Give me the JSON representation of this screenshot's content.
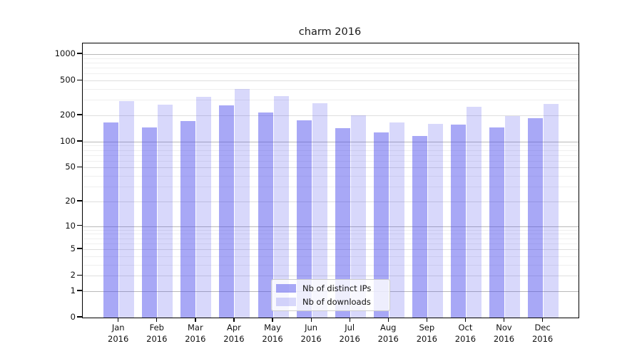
{
  "chart_data": {
    "type": "bar",
    "title": "charm 2016",
    "categories": [
      "Jan",
      "Feb",
      "Mar",
      "Apr",
      "May",
      "Jun",
      "Jul",
      "Aug",
      "Sep",
      "Oct",
      "Nov",
      "Dec"
    ],
    "x_sublabel": "2016",
    "series": [
      {
        "name": "Nb of distinct IPs",
        "color": "rgba(70,70,235,0.47)",
        "values": [
          167,
          145,
          171,
          261,
          217,
          176,
          144,
          128,
          115,
          156,
          146,
          187
        ]
      },
      {
        "name": "Nb of downloads",
        "color": "rgba(70,70,235,0.21)",
        "values": [
          291,
          266,
          327,
          400,
          329,
          275,
          201,
          167,
          160,
          252,
          198,
          268
        ]
      }
    ],
    "yticks": [
      1000,
      500,
      200,
      100,
      50,
      20,
      10,
      5,
      2,
      1,
      0
    ],
    "ylim": [
      0,
      1325
    ],
    "yscale": "symlog",
    "grid": "both",
    "legend_position": "lower center",
    "axis_color": "#000000",
    "grid_major_color": "#b9b9b9",
    "grid_sub_color": "#dedede",
    "grid_minor_color": "#efefef"
  }
}
